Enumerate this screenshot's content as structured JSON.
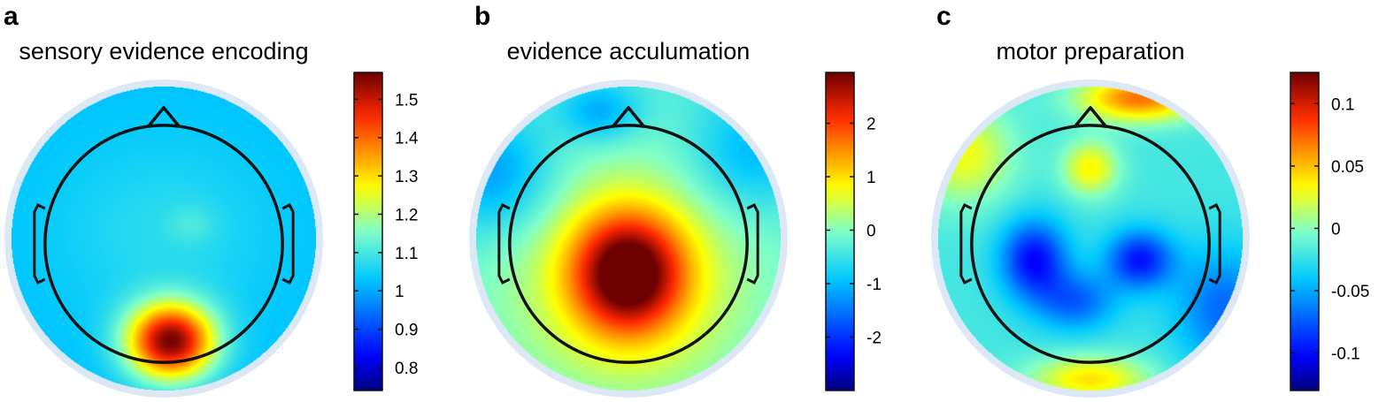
{
  "chart_data": [
    {
      "type": "heatmap",
      "panel_letter": "a",
      "title": "sensory evidence encoding",
      "colorbar": {
        "range": [
          0.74,
          1.57
        ],
        "ticks": [
          0.8,
          0.9,
          1,
          1.1,
          1.2,
          1.3,
          1.4,
          1.5
        ],
        "tick_labels": [
          "0.8",
          "0.9",
          "1",
          "1.1",
          "1.2",
          "1.3",
          "1.4",
          "1.5"
        ]
      },
      "baseline": 1.02,
      "blobs": [
        {
          "cx": 0.05,
          "cy": -0.73,
          "sx": 0.22,
          "sy": 0.19,
          "amp": 0.53
        },
        {
          "cx": 0.0,
          "cy": 0.05,
          "sx": 0.6,
          "sy": 0.5,
          "amp": 0.05
        },
        {
          "cx": 0.2,
          "cy": 0.1,
          "sx": 0.12,
          "sy": 0.1,
          "amp": 0.04
        }
      ]
    },
    {
      "type": "heatmap",
      "panel_letter": "b",
      "title": "evidence acculumation",
      "colorbar": {
        "range": [
          -3.0,
          2.95
        ],
        "ticks": [
          -2,
          -1,
          0,
          1,
          2
        ],
        "tick_labels": [
          "-2",
          "-1",
          "0",
          "1",
          "2"
        ]
      },
      "baseline": -0.4,
      "blobs": [
        {
          "cx": 0.0,
          "cy": -0.25,
          "sx": 0.28,
          "sy": 0.3,
          "amp": 3.1
        },
        {
          "cx": 0.0,
          "cy": -0.3,
          "sx": 0.75,
          "sy": 0.7,
          "amp": 1.0
        },
        {
          "cx": -0.2,
          "cy": 0.9,
          "sx": 0.2,
          "sy": 0.15,
          "amp": -0.9
        },
        {
          "cx": -0.95,
          "cy": 0.45,
          "sx": 0.3,
          "sy": 0.3,
          "amp": -1.0
        },
        {
          "cx": 0.85,
          "cy": 0.6,
          "sx": 0.3,
          "sy": 0.3,
          "amp": -0.8
        }
      ]
    },
    {
      "type": "heatmap",
      "panel_letter": "c",
      "title": "motor preparation",
      "colorbar": {
        "range": [
          -0.13,
          0.125
        ],
        "ticks": [
          -0.1,
          -0.05,
          0,
          0.05,
          0.1
        ],
        "tick_labels": [
          "-0.1",
          "-0.05",
          "0",
          "0.05",
          "0.1"
        ]
      },
      "baseline": -0.02,
      "blobs": [
        {
          "cx": -0.4,
          "cy": -0.15,
          "sx": 0.17,
          "sy": 0.2,
          "amp": -0.08
        },
        {
          "cx": 0.35,
          "cy": -0.15,
          "sx": 0.17,
          "sy": 0.15,
          "amp": -0.075
        },
        {
          "cx": -0.1,
          "cy": -0.45,
          "sx": 0.2,
          "sy": 0.15,
          "amp": -0.05
        },
        {
          "cx": 0.0,
          "cy": 0.5,
          "sx": 0.14,
          "sy": 0.14,
          "amp": 0.055
        },
        {
          "cx": 0.35,
          "cy": 1.0,
          "sx": 0.3,
          "sy": 0.12,
          "amp": 0.09
        },
        {
          "cx": -0.9,
          "cy": 0.6,
          "sx": 0.25,
          "sy": 0.25,
          "amp": 0.05
        },
        {
          "cx": 0.0,
          "cy": -1.0,
          "sx": 0.3,
          "sy": 0.12,
          "amp": 0.06
        },
        {
          "cx": 0.95,
          "cy": -0.5,
          "sx": 0.25,
          "sy": 0.3,
          "amp": -0.05
        }
      ]
    }
  ]
}
